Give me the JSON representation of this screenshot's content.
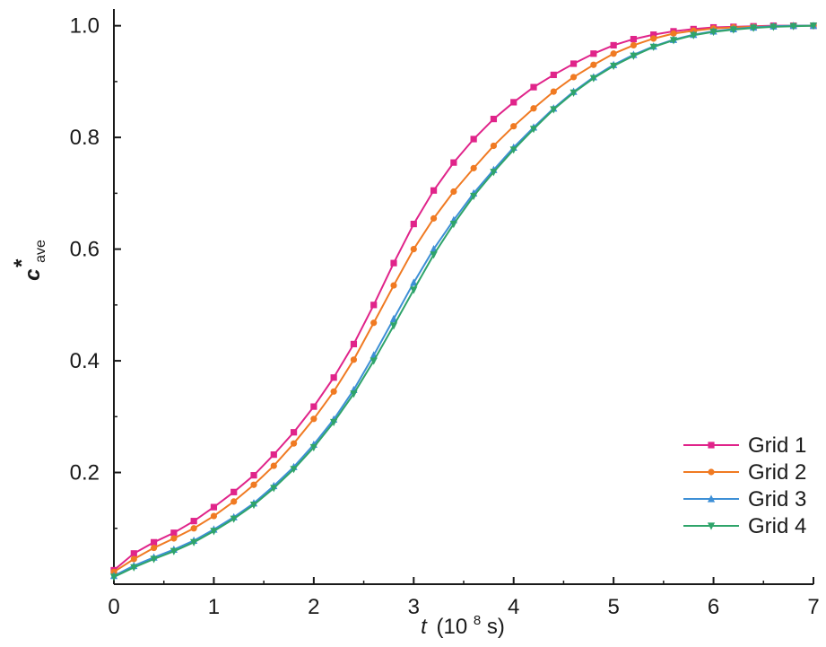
{
  "chart_data": {
    "type": "line",
    "xlabel": {
      "symbol": "t",
      "prefix": "(10",
      "exponent": "8",
      "suffix": " s)"
    },
    "ylabel": {
      "symbol": "c",
      "superscript": "*",
      "subscript": "ave"
    },
    "xlim": [
      0,
      7
    ],
    "ylim": [
      0,
      1.03
    ],
    "xticks": [
      "0",
      "1",
      "2",
      "3",
      "4",
      "5",
      "6",
      "7"
    ],
    "yticks": [
      "0.2",
      "0.4",
      "0.6",
      "0.8",
      "1.0"
    ],
    "grid": false,
    "legend_position": "bottom-right",
    "series": [
      {
        "name": "Grid 1",
        "color": "#e0248a",
        "marker": "square",
        "x": [
          0,
          0.2,
          0.4,
          0.6,
          0.8,
          1.0,
          1.2,
          1.4,
          1.6,
          1.8,
          2.0,
          2.2,
          2.4,
          2.6,
          2.8,
          3.0,
          3.2,
          3.4,
          3.6,
          3.8,
          4.0,
          4.2,
          4.4,
          4.6,
          4.8,
          5.0,
          5.2,
          5.4,
          5.6,
          5.8,
          6.0,
          6.2,
          6.4,
          6.6,
          6.8,
          7.0
        ],
        "y": [
          0.025,
          0.055,
          0.075,
          0.092,
          0.113,
          0.138,
          0.165,
          0.195,
          0.232,
          0.272,
          0.318,
          0.37,
          0.43,
          0.5,
          0.575,
          0.645,
          0.705,
          0.755,
          0.797,
          0.833,
          0.863,
          0.89,
          0.912,
          0.932,
          0.95,
          0.965,
          0.976,
          0.984,
          0.99,
          0.994,
          0.997,
          0.998,
          0.999,
          1.0,
          1.0,
          1.0
        ]
      },
      {
        "name": "Grid 2",
        "color": "#f07a22",
        "marker": "circle",
        "x": [
          0,
          0.2,
          0.4,
          0.6,
          0.8,
          1.0,
          1.2,
          1.4,
          1.6,
          1.8,
          2.0,
          2.2,
          2.4,
          2.6,
          2.8,
          3.0,
          3.2,
          3.4,
          3.6,
          3.8,
          4.0,
          4.2,
          4.4,
          4.6,
          4.8,
          5.0,
          5.2,
          5.4,
          5.6,
          5.8,
          6.0,
          6.2,
          6.4,
          6.6,
          6.8,
          7.0
        ],
        "y": [
          0.022,
          0.045,
          0.065,
          0.082,
          0.1,
          0.122,
          0.148,
          0.178,
          0.212,
          0.252,
          0.296,
          0.345,
          0.402,
          0.468,
          0.535,
          0.6,
          0.655,
          0.703,
          0.745,
          0.785,
          0.82,
          0.852,
          0.882,
          0.908,
          0.93,
          0.95,
          0.965,
          0.977,
          0.986,
          0.991,
          0.995,
          0.997,
          0.998,
          0.999,
          1.0,
          1.0
        ]
      },
      {
        "name": "Grid 3",
        "color": "#3d8fd6",
        "marker": "triangle-up",
        "x": [
          0,
          0.2,
          0.4,
          0.6,
          0.8,
          1.0,
          1.2,
          1.4,
          1.6,
          1.8,
          2.0,
          2.2,
          2.4,
          2.6,
          2.8,
          3.0,
          3.2,
          3.4,
          3.6,
          3.8,
          4.0,
          4.2,
          4.4,
          4.6,
          4.8,
          5.0,
          5.2,
          5.4,
          5.6,
          5.8,
          6.0,
          6.2,
          6.4,
          6.6,
          6.8,
          7.0
        ],
        "y": [
          0.015,
          0.033,
          0.048,
          0.062,
          0.078,
          0.098,
          0.12,
          0.145,
          0.176,
          0.21,
          0.25,
          0.295,
          0.348,
          0.41,
          0.475,
          0.54,
          0.6,
          0.652,
          0.7,
          0.742,
          0.782,
          0.818,
          0.852,
          0.882,
          0.908,
          0.93,
          0.948,
          0.963,
          0.975,
          0.984,
          0.99,
          0.994,
          0.997,
          0.999,
          1.0,
          1.0
        ]
      },
      {
        "name": "Grid 4",
        "color": "#2fa46a",
        "marker": "triangle-down",
        "x": [
          0,
          0.2,
          0.4,
          0.6,
          0.8,
          1.0,
          1.2,
          1.4,
          1.6,
          1.8,
          2.0,
          2.2,
          2.4,
          2.6,
          2.8,
          3.0,
          3.2,
          3.4,
          3.6,
          3.8,
          4.0,
          4.2,
          4.4,
          4.6,
          4.8,
          5.0,
          5.2,
          5.4,
          5.6,
          5.8,
          6.0,
          6.2,
          6.4,
          6.6,
          6.8,
          7.0
        ],
        "y": [
          0.013,
          0.03,
          0.045,
          0.059,
          0.075,
          0.095,
          0.117,
          0.142,
          0.172,
          0.206,
          0.245,
          0.29,
          0.341,
          0.4,
          0.463,
          0.527,
          0.59,
          0.645,
          0.695,
          0.738,
          0.778,
          0.815,
          0.85,
          0.88,
          0.906,
          0.928,
          0.946,
          0.962,
          0.974,
          0.983,
          0.989,
          0.993,
          0.996,
          0.998,
          0.999,
          1.0
        ]
      }
    ]
  }
}
